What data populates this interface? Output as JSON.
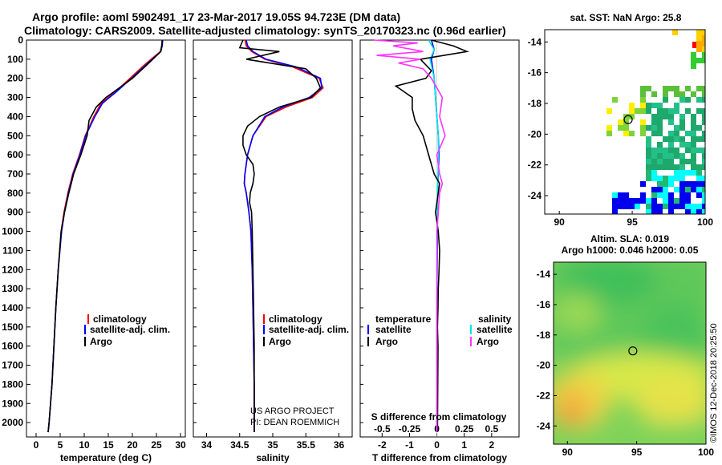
{
  "title_line1": "Argo profile: aoml 5902491_17 23-Mar-2017 19.05S 94.723E (DM data)",
  "title_line2": "Climatology: CARS2009. Satellite-adjusted climatology: synTS_20170323.nc (0.96d earlier)",
  "credit": "US ARGO PROJECT",
  "pi": "PI: DEAN ROEMMICH",
  "imos_stamp": "©IMOS 12-Dec-2018 20:25:50",
  "colors": {
    "climatology": "#ff0000",
    "satellite": "#0000ff",
    "argo": "#000000",
    "salinity_satellite": "#00e5e5",
    "salinity_argo": "#ff33ff"
  },
  "chart_data": [
    {
      "id": "temperature",
      "type": "line",
      "xlabel": "temperature (deg C)",
      "xlim": [
        -2,
        31
      ],
      "xticks": [
        0,
        5,
        10,
        15,
        20,
        25,
        30
      ],
      "ylim": [
        2075,
        0
      ],
      "yticks": [
        0,
        100,
        200,
        300,
        400,
        500,
        600,
        700,
        800,
        900,
        1000,
        1100,
        1200,
        1300,
        1400,
        1500,
        1600,
        1700,
        1800,
        1900,
        2000
      ],
      "legend": [
        "climatology",
        "satellite-adj. clim.",
        "Argo"
      ],
      "series": [
        {
          "name": "climatology",
          "color": "#ff0000",
          "x": [
            26.2,
            26.1,
            25.8,
            22.5,
            19.5,
            16.5,
            13.5,
            12.0,
            10.2,
            9.0,
            7.6,
            6.6,
            5.8,
            5.2,
            4.6,
            4.1,
            3.7,
            3.3,
            3.0,
            2.7,
            2.5
          ],
          "y": [
            0,
            30,
            60,
            130,
            200,
            270,
            330,
            400,
            500,
            600,
            700,
            800,
            900,
            1000,
            1200,
            1400,
            1600,
            1800,
            1900,
            2000,
            2050
          ]
        },
        {
          "name": "satellite-adj. clim.",
          "color": "#0000ff",
          "x": [
            26.3,
            26.2,
            25.9,
            22.8,
            19.8,
            16.7,
            13.8,
            12.2,
            10.3,
            9.1,
            7.7,
            6.7,
            5.9,
            5.3,
            4.6,
            4.1,
            3.7,
            3.3,
            3.0,
            2.7,
            2.5
          ],
          "y": [
            0,
            30,
            60,
            130,
            200,
            270,
            330,
            400,
            500,
            600,
            700,
            800,
            900,
            1000,
            1200,
            1400,
            1600,
            1800,
            1900,
            2000,
            2050
          ]
        },
        {
          "name": "Argo",
          "color": "#000000",
          "x": [
            26.2,
            26.1,
            25.9,
            23.0,
            20.0,
            16.2,
            14.5,
            12.5,
            11.0,
            10.6,
            9.3,
            7.8,
            6.8,
            5.9,
            5.2,
            4.6,
            4.1,
            3.7,
            3.3,
            3.0,
            2.7,
            2.5
          ],
          "y": [
            0,
            30,
            60,
            130,
            200,
            270,
            300,
            350,
            420,
            500,
            600,
            700,
            800,
            900,
            1000,
            1200,
            1400,
            1600,
            1800,
            1900,
            2000,
            2050
          ]
        }
      ]
    },
    {
      "id": "salinity",
      "type": "line",
      "xlabel": "salinity",
      "xlim": [
        33.8,
        36.2
      ],
      "xticks": [
        34,
        34.5,
        35,
        35.5,
        36
      ],
      "ylim": [
        2075,
        0
      ],
      "legend": [
        "climatology",
        "satellite-adj. clim.",
        "Argo"
      ],
      "series": [
        {
          "name": "climatology",
          "color": "#ff0000",
          "x": [
            34.58,
            34.6,
            34.68,
            34.88,
            35.3,
            35.7,
            35.76,
            35.6,
            35.2,
            34.9,
            34.7,
            34.62,
            34.58,
            34.57,
            34.6,
            34.64,
            34.67,
            34.69,
            34.7,
            34.71,
            34.72,
            34.72
          ],
          "y": [
            0,
            30,
            60,
            100,
            140,
            200,
            250,
            300,
            350,
            400,
            500,
            600,
            700,
            750,
            800,
            900,
            1000,
            1200,
            1400,
            1600,
            1800,
            2050
          ]
        },
        {
          "name": "satellite-adj. clim.",
          "color": "#0000ff",
          "x": [
            34.6,
            34.62,
            34.7,
            34.9,
            35.35,
            35.72,
            35.74,
            35.55,
            35.15,
            34.88,
            34.7,
            34.62,
            34.58,
            34.57,
            34.6,
            34.64,
            34.67,
            34.69,
            34.7,
            34.71,
            34.72,
            34.72
          ],
          "y": [
            0,
            30,
            60,
            100,
            140,
            200,
            250,
            300,
            350,
            400,
            500,
            600,
            700,
            750,
            800,
            900,
            1000,
            1200,
            1400,
            1600,
            1800,
            2050
          ]
        },
        {
          "name": "Argo",
          "color": "#000000",
          "x": [
            34.55,
            34.5,
            35.1,
            34.6,
            35.5,
            35.66,
            35.72,
            35.58,
            35.1,
            34.8,
            34.62,
            34.55,
            34.55,
            34.6,
            34.7,
            34.72,
            34.7,
            34.66,
            34.65,
            34.68,
            34.69,
            34.7,
            34.71,
            34.72,
            34.72
          ],
          "y": [
            0,
            40,
            60,
            100,
            150,
            200,
            250,
            300,
            350,
            400,
            450,
            500,
            550,
            600,
            650,
            700,
            750,
            800,
            850,
            900,
            1000,
            1200,
            1400,
            1600,
            2050
          ]
        }
      ]
    },
    {
      "id": "difference",
      "type": "line",
      "xlabel": "T difference from climatology",
      "xlabel2": "S difference from climatology",
      "xlim": [
        -2.8,
        3.0
      ],
      "xticks": [
        -2,
        -1,
        0,
        1,
        2
      ],
      "xticks_s": [
        "-0.5",
        "-0.25",
        "0",
        "0.25",
        "0.5"
      ],
      "xticks_s_pos": [
        -2,
        -1,
        0,
        1,
        2
      ],
      "ylim": [
        2075,
        0
      ],
      "legend_temperature_title": "temperature",
      "legend_salinity_title": "salinity",
      "legend_temperature": [
        "satellite",
        "Argo"
      ],
      "legend_salinity": [
        "satellite",
        "Argo"
      ],
      "series": [
        {
          "name": "satellite",
          "group": "temperature",
          "color": "#0000ff",
          "x": [
            -0.2,
            -0.1,
            -0.2,
            -0.1,
            -0.05,
            0.0,
            0.05,
            0.08,
            0.05,
            0.02,
            0.02,
            0.0,
            0.0,
            0.0
          ],
          "y": [
            0,
            50,
            100,
            200,
            300,
            400,
            500,
            600,
            700,
            800,
            1000,
            1400,
            1800,
            2050
          ]
        },
        {
          "name": "satellite",
          "group": "salinity",
          "color": "#00e5e5",
          "x": [
            -0.3,
            -0.1,
            -0.25,
            -0.1,
            -0.05,
            0.0,
            0.05,
            0.06,
            0.04,
            0.02,
            0.0,
            0.0,
            0.0
          ],
          "y": [
            0,
            50,
            100,
            200,
            300,
            400,
            500,
            600,
            700,
            800,
            1200,
            1600,
            2050
          ]
        },
        {
          "name": "Argo",
          "group": "temperature",
          "color": "#000000",
          "x": [
            -0.2,
            0.6,
            1.1,
            -0.6,
            -0.2,
            -0.4,
            -1.5,
            -1.3,
            -0.9,
            -0.9,
            -0.8,
            -0.5,
            -0.3,
            -0.1,
            0.1,
            0.05,
            -0.05,
            0.05,
            0.1,
            0.08,
            0.05,
            0.04,
            0.02,
            0.04,
            0.02
          ],
          "y": [
            0,
            30,
            60,
            100,
            160,
            200,
            240,
            260,
            300,
            360,
            420,
            500,
            600,
            700,
            750,
            800,
            900,
            1000,
            1100,
            1200,
            1300,
            1400,
            1500,
            1600,
            2050
          ]
        },
        {
          "name": "Argo",
          "group": "salinity",
          "color": "#ff33ff",
          "x": [
            -2.3,
            -0.7,
            -1.6,
            -0.5,
            -2.2,
            -0.6,
            -1.4,
            -0.5,
            -0.2,
            0.2,
            0.1,
            0.3,
            0.0,
            0.1,
            0.2,
            0.1,
            0.05,
            0.0,
            0.0
          ],
          "y": [
            0,
            15,
            30,
            60,
            80,
            100,
            120,
            150,
            200,
            300,
            400,
            500,
            600,
            700,
            750,
            800,
            900,
            1000,
            2050
          ]
        }
      ]
    },
    {
      "id": "sst_map",
      "type": "heatmap",
      "title": "sat. SST: NaN Argo: 25.8",
      "xlim": [
        89,
        100
      ],
      "ylim": [
        -25.2,
        -13.2
      ],
      "xticks": [
        90,
        95,
        100
      ],
      "yticks": [
        -14,
        -16,
        -18,
        -20,
        -22,
        -24
      ],
      "marker": {
        "lon": 94.723,
        "lat": -19.05
      }
    },
    {
      "id": "sla_map",
      "type": "heatmap",
      "title": "Altim. SLA: 0.019",
      "subtitle": "Argo h1000: 0.046 h2000: 0.05",
      "xlim": [
        89,
        100
      ],
      "ylim": [
        -25.2,
        -13.2
      ],
      "xticks": [
        90,
        95,
        100
      ],
      "yticks": [
        -14,
        -16,
        -18,
        -20,
        -22,
        -24
      ],
      "marker": {
        "lon": 94.723,
        "lat": -19.05
      }
    }
  ]
}
